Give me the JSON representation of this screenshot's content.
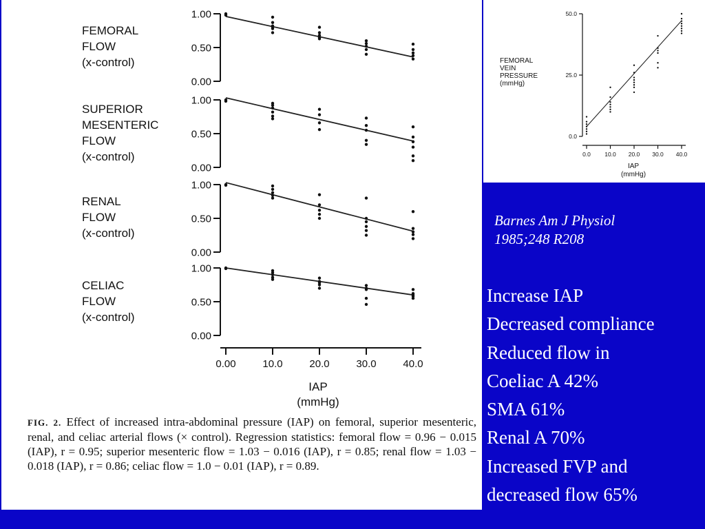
{
  "chart_data": [
    {
      "type": "scatter",
      "name": "femoral",
      "ylabel_lines": [
        "FEMORAL",
        "FLOW",
        "(x-control)"
      ],
      "yticks": [
        "1.00",
        "0.50",
        "0.00"
      ],
      "ylim": [
        0,
        1
      ],
      "xlim": [
        0,
        40
      ],
      "regression": {
        "intercept": 0.96,
        "slope": -0.015
      },
      "points": [
        [
          0,
          1.0
        ],
        [
          0,
          0.98
        ],
        [
          10,
          0.95
        ],
        [
          10,
          0.87
        ],
        [
          10,
          0.82
        ],
        [
          10,
          0.8
        ],
        [
          10,
          0.78
        ],
        [
          10,
          0.72
        ],
        [
          20,
          0.8
        ],
        [
          20,
          0.72
        ],
        [
          20,
          0.68
        ],
        [
          20,
          0.65
        ],
        [
          20,
          0.63
        ],
        [
          30,
          0.6
        ],
        [
          30,
          0.56
        ],
        [
          30,
          0.52
        ],
        [
          30,
          0.47
        ],
        [
          30,
          0.4
        ],
        [
          40,
          0.55
        ],
        [
          40,
          0.47
        ],
        [
          40,
          0.42
        ],
        [
          40,
          0.38
        ],
        [
          40,
          0.33
        ]
      ]
    },
    {
      "type": "scatter",
      "name": "superior-mesenteric",
      "ylabel_lines": [
        "SUPERIOR",
        "MESENTERIC",
        "FLOW",
        "(x-control)"
      ],
      "yticks": [
        "1.00",
        "0.50",
        "0.00"
      ],
      "ylim": [
        0,
        1
      ],
      "xlim": [
        0,
        40
      ],
      "regression": {
        "intercept": 1.03,
        "slope": -0.016
      },
      "points": [
        [
          0,
          1.0
        ],
        [
          0,
          0.98
        ],
        [
          10,
          0.95
        ],
        [
          10,
          0.92
        ],
        [
          10,
          0.88
        ],
        [
          10,
          0.82
        ],
        [
          10,
          0.76
        ],
        [
          10,
          0.72
        ],
        [
          20,
          0.86
        ],
        [
          20,
          0.78
        ],
        [
          20,
          0.66
        ],
        [
          20,
          0.56
        ],
        [
          30,
          0.73
        ],
        [
          30,
          0.62
        ],
        [
          30,
          0.55
        ],
        [
          30,
          0.4
        ],
        [
          30,
          0.34
        ],
        [
          40,
          0.6
        ],
        [
          40,
          0.45
        ],
        [
          40,
          0.38
        ],
        [
          40,
          0.3
        ],
        [
          40,
          0.17
        ],
        [
          40,
          0.1
        ]
      ]
    },
    {
      "type": "scatter",
      "name": "renal",
      "ylabel_lines": [
        "RENAL",
        "FLOW",
        "(x-control)"
      ],
      "yticks": [
        "1.00",
        "0.50",
        "0.00"
      ],
      "ylim": [
        0,
        1
      ],
      "xlim": [
        0,
        40
      ],
      "regression": {
        "intercept": 1.03,
        "slope": -0.018
      },
      "points": [
        [
          0,
          1.0
        ],
        [
          0,
          0.99
        ],
        [
          10,
          0.98
        ],
        [
          10,
          0.93
        ],
        [
          10,
          0.88
        ],
        [
          10,
          0.84
        ],
        [
          10,
          0.8
        ],
        [
          20,
          0.85
        ],
        [
          20,
          0.7
        ],
        [
          20,
          0.62
        ],
        [
          20,
          0.56
        ],
        [
          20,
          0.5
        ],
        [
          30,
          0.8
        ],
        [
          30,
          0.5
        ],
        [
          30,
          0.45
        ],
        [
          30,
          0.38
        ],
        [
          30,
          0.32
        ],
        [
          30,
          0.25
        ],
        [
          40,
          0.6
        ],
        [
          40,
          0.35
        ],
        [
          40,
          0.3
        ],
        [
          40,
          0.26
        ],
        [
          40,
          0.2
        ]
      ]
    },
    {
      "type": "scatter",
      "name": "celiac",
      "ylabel_lines": [
        "CELIAC",
        "FLOW",
        "(x-control)"
      ],
      "yticks": [
        "1.00",
        "0.50",
        "0.00"
      ],
      "xticks": [
        "0.00",
        "10.0",
        "20.0",
        "30.0",
        "40.0"
      ],
      "xlabel": "IAP",
      "xunit": "(mmHg)",
      "ylim": [
        0,
        1
      ],
      "xlim": [
        0,
        40
      ],
      "regression": {
        "intercept": 1.0,
        "slope": -0.01
      },
      "points": [
        [
          0,
          1.0
        ],
        [
          0,
          0.99
        ],
        [
          10,
          0.96
        ],
        [
          10,
          0.93
        ],
        [
          10,
          0.9
        ],
        [
          10,
          0.86
        ],
        [
          10,
          0.83
        ],
        [
          20,
          0.85
        ],
        [
          20,
          0.8
        ],
        [
          20,
          0.78
        ],
        [
          20,
          0.75
        ],
        [
          20,
          0.7
        ],
        [
          30,
          0.74
        ],
        [
          30,
          0.7
        ],
        [
          30,
          0.68
        ],
        [
          30,
          0.55
        ],
        [
          30,
          0.46
        ],
        [
          40,
          0.68
        ],
        [
          40,
          0.62
        ],
        [
          40,
          0.6
        ],
        [
          40,
          0.58
        ],
        [
          40,
          0.55
        ]
      ]
    },
    {
      "type": "scatter",
      "name": "femoral-vein-pressure",
      "ylabel_lines": [
        "FEMORAL",
        "VEIN",
        "PRESSURE",
        "(mmHg)"
      ],
      "yticks": [
        "50.0",
        "25.0",
        "0.0"
      ],
      "xticks": [
        "0.0",
        "10.0",
        "20.0",
        "30.0",
        "40.0"
      ],
      "xlabel": "IAP",
      "xunit": "(mmHg)",
      "ylim": [
        0,
        50
      ],
      "xlim": [
        0,
        40
      ],
      "regression": {
        "intercept": 4,
        "slope": 1.08
      },
      "points": [
        [
          0,
          8
        ],
        [
          0,
          6
        ],
        [
          0,
          5
        ],
        [
          0,
          4
        ],
        [
          0,
          3
        ],
        [
          0,
          2
        ],
        [
          0,
          1
        ],
        [
          10,
          20
        ],
        [
          10,
          16
        ],
        [
          10,
          14
        ],
        [
          10,
          13
        ],
        [
          10,
          12
        ],
        [
          10,
          11
        ],
        [
          10,
          10
        ],
        [
          20,
          29
        ],
        [
          20,
          26
        ],
        [
          20,
          24
        ],
        [
          20,
          23
        ],
        [
          20,
          22
        ],
        [
          20,
          21
        ],
        [
          20,
          20
        ],
        [
          20,
          18
        ],
        [
          30,
          41
        ],
        [
          30,
          36
        ],
        [
          30,
          35
        ],
        [
          30,
          34
        ],
        [
          30,
          30
        ],
        [
          30,
          28
        ],
        [
          40,
          50
        ],
        [
          40,
          48
        ],
        [
          40,
          47
        ],
        [
          40,
          46
        ],
        [
          40,
          45
        ],
        [
          40,
          44
        ],
        [
          40,
          43
        ],
        [
          40,
          42
        ]
      ]
    }
  ],
  "caption": {
    "fig_label": "FIG.",
    "fig_number": "2.",
    "text": "Effect of increased intra-abdominal pressure (IAP) on femoral, superior mesenteric, renal, and celiac arterial flows (× control). Regression statistics: femoral flow = 0.96 − 0.015 (IAP), r = 0.95; superior mesenteric flow = 1.03 − 0.016 (IAP), r = 0.85; renal flow = 1.03 − 0.018 (IAP), r = 0.86; celiac flow = 1.0 − 0.01 (IAP), r = 0.89."
  },
  "citation": {
    "line1": "Barnes Am J Physiol",
    "line2": "1985;248 R208"
  },
  "bullets": [
    "Increase IAP",
    "Decreased compliance",
    "Reduced flow in",
    "Coeliac A 42%",
    "SMA 61%",
    "Renal A 70%",
    "Increased FVP and",
    "decreased flow 65%"
  ],
  "colors": {
    "background": "#0a05c8",
    "panel": "#ffffff",
    "text_on_blue": "#ffffff",
    "ink": "#111111"
  }
}
